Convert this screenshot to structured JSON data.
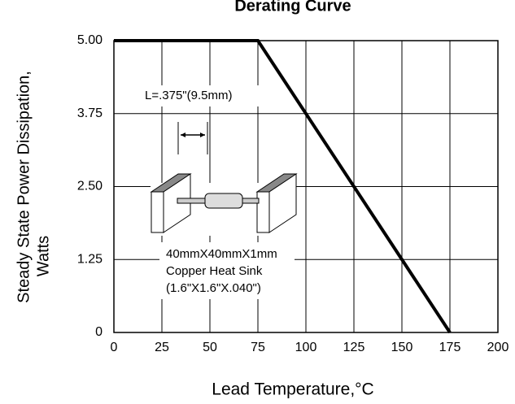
{
  "chart_data": {
    "type": "line",
    "title": "Derating Curve",
    "x_label": "Lead Temperature,°C",
    "y_label": [
      "Steady State Power Dissipation,",
      "Watts"
    ],
    "x": [
      0,
      75,
      175
    ],
    "series": [
      {
        "color": "#000000",
        "values": [
          5,
          5,
          0
        ]
      }
    ],
    "xlim": [
      0,
      200
    ],
    "xticks": [
      0,
      25,
      50,
      75,
      100,
      125,
      150,
      175,
      200
    ],
    "ylim": [
      0,
      5
    ],
    "yticks": [
      0,
      1.25,
      {
        "value": 2.5,
        "label": "2.50"
      },
      3.75,
      {
        "value": 5,
        "label": "5.00"
      }
    ],
    "grid": true,
    "annotations": {
      "length": "L=.375\"(9.5mm)",
      "sink": [
        "40mmX40mmX1mm",
        "Copper Heat Sink",
        "(1.6\"X1.6\"X.040\")"
      ]
    }
  }
}
